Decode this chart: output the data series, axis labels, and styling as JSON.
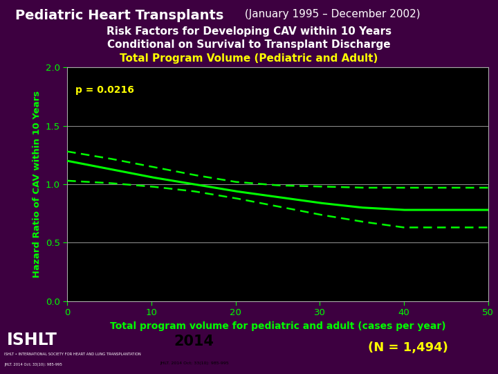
{
  "title_bold": "Pediatric Heart Transplants",
  "title_normal": " (January 1995 – December 2002)",
  "subtitle1": "Risk Factors for Developing CAV within 10 Years",
  "subtitle2": "Conditional on Survival to Transplant Discharge",
  "subtitle3": "Total Program Volume (Pediatric and Adult)",
  "ylabel": "Hazard Ratio of CAV within 10 Years",
  "xlabel": "Total program volume for pediatric and adult (cases per year)",
  "p_value_text": "p = 0.0216",
  "n_text": "(N = 1,494)",
  "year_text": "2014",
  "background_color": "#3d0040",
  "plot_bg_color": "#000000",
  "title_color": "#ffffff",
  "subtitle_color": "#ffffff",
  "subtitle3_color": "#ffff00",
  "ylabel_color": "#00ff00",
  "xlabel_color": "#00ff00",
  "tick_color": "#00ff00",
  "grid_color": "#888888",
  "p_value_color": "#ffff00",
  "n_text_color": "#ffff00",
  "line_color": "#00ff00",
  "ci_color": "#00ff00",
  "xlim": [
    0,
    50
  ],
  "ylim": [
    0.0,
    2.0
  ],
  "yticks": [
    0.0,
    0.5,
    1.0,
    1.5,
    2.0
  ],
  "xticks": [
    0,
    10,
    20,
    30,
    40,
    50
  ],
  "x_data": [
    0,
    5,
    10,
    15,
    20,
    25,
    30,
    35,
    40,
    45,
    50
  ],
  "y_main": [
    1.2,
    1.13,
    1.06,
    1.0,
    0.94,
    0.89,
    0.84,
    0.8,
    0.78,
    0.78,
    0.78
  ],
  "y_ci_upper": [
    1.28,
    1.22,
    1.15,
    1.08,
    1.02,
    0.99,
    0.98,
    0.97,
    0.97,
    0.97,
    0.97
  ],
  "y_ci_lower": [
    1.03,
    1.01,
    0.98,
    0.94,
    0.88,
    0.81,
    0.74,
    0.68,
    0.63,
    0.63,
    0.63
  ]
}
